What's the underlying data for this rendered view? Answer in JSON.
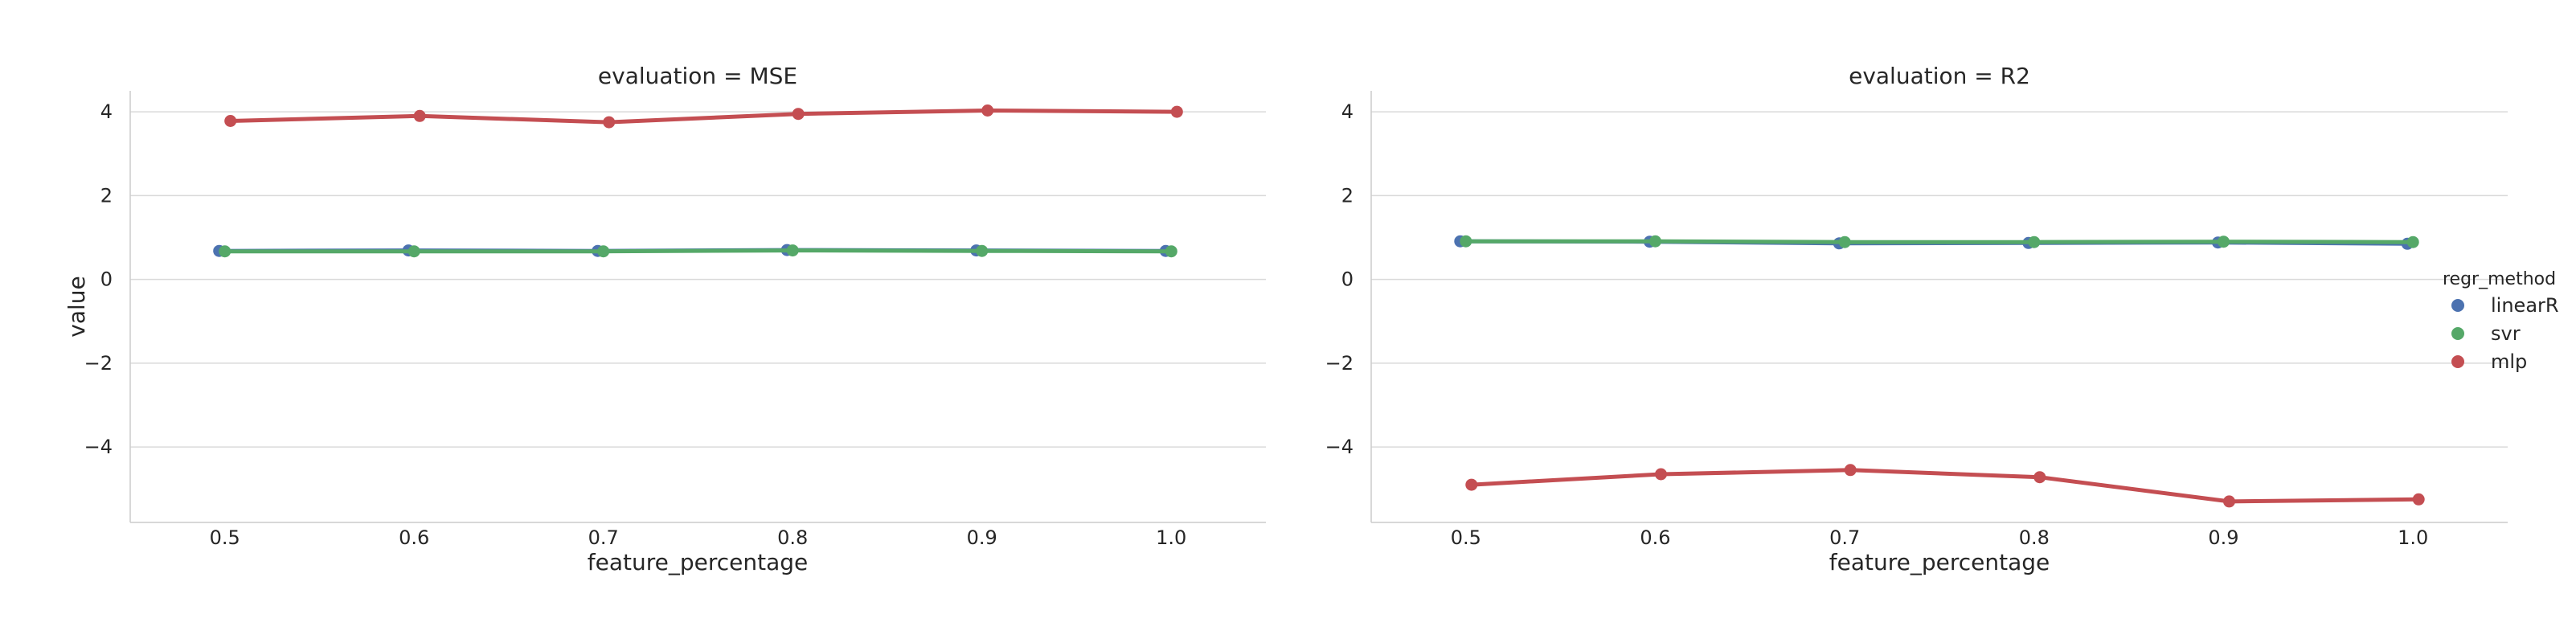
{
  "chart_data": [
    {
      "type": "line",
      "title": "evaluation = MSE",
      "xlabel": "feature_percentage",
      "ylabel": "value",
      "x": [
        0.5,
        0.6,
        0.7,
        0.8,
        0.9,
        1.0
      ],
      "xlim": [
        0.45,
        1.05
      ],
      "ylim": [
        -5.8,
        4.5
      ],
      "yticks": [
        4,
        2,
        0,
        -2,
        -4
      ],
      "xtick_labels": [
        "0.5",
        "0.6",
        "0.7",
        "0.8",
        "0.9",
        "1.0"
      ],
      "ytick_labels": [
        "4",
        "2",
        "0",
        "−2",
        "−4"
      ],
      "grid": true,
      "series": [
        {
          "name": "linearR",
          "color": "#4c72b0",
          "values": [
            0.68,
            0.69,
            0.68,
            0.7,
            0.69,
            0.68
          ]
        },
        {
          "name": "svr",
          "color": "#55a868",
          "values": [
            0.67,
            0.67,
            0.67,
            0.69,
            0.68,
            0.67
          ]
        },
        {
          "name": "mlp",
          "color": "#c44e52",
          "values": [
            3.78,
            3.9,
            3.75,
            3.95,
            4.03,
            4.0
          ]
        }
      ]
    },
    {
      "type": "line",
      "title": "evaluation = R2",
      "xlabel": "feature_percentage",
      "ylabel": "",
      "x": [
        0.5,
        0.6,
        0.7,
        0.8,
        0.9,
        1.0
      ],
      "xlim": [
        0.45,
        1.05
      ],
      "ylim": [
        -5.8,
        4.5
      ],
      "yticks": [
        4,
        2,
        0,
        -2,
        -4
      ],
      "xtick_labels": [
        "0.5",
        "0.6",
        "0.7",
        "0.8",
        "0.9",
        "1.0"
      ],
      "ytick_labels": [
        "4",
        "2",
        "0",
        "−2",
        "−4"
      ],
      "grid": true,
      "series": [
        {
          "name": "linearR",
          "color": "#4c72b0",
          "values": [
            0.91,
            0.9,
            0.86,
            0.87,
            0.88,
            0.85
          ]
        },
        {
          "name": "svr",
          "color": "#55a868",
          "values": [
            0.91,
            0.91,
            0.89,
            0.89,
            0.9,
            0.89
          ]
        },
        {
          "name": "mlp",
          "color": "#c44e52",
          "values": [
            -4.9,
            -4.65,
            -4.55,
            -4.72,
            -5.3,
            -5.25
          ]
        }
      ]
    }
  ],
  "legend": {
    "title": "regr_method",
    "placement": "right",
    "items": [
      {
        "label": "linearR",
        "color": "#4c72b0"
      },
      {
        "label": "svr",
        "color": "#55a868"
      },
      {
        "label": "mlp",
        "color": "#c44e52"
      }
    ]
  }
}
